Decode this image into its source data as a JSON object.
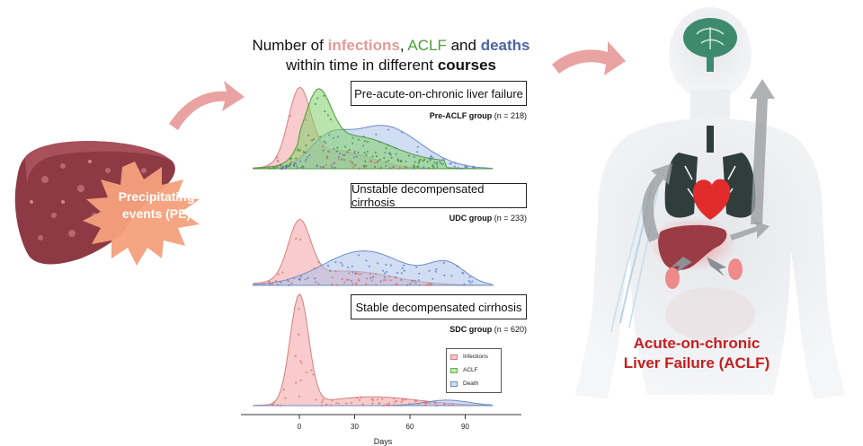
{
  "heading": {
    "line1_prefix": "Number of ",
    "infections": "infections",
    "sep1": ", ",
    "aclf": "ACLF",
    "and": " and ",
    "deaths": "deaths",
    "line2_prefix": "within time in different ",
    "courses": "courses"
  },
  "trigger": {
    "line1": "Precipitating",
    "line2": "events (PE)"
  },
  "outcome": {
    "line1": "Acute-on-chronic",
    "line2": "Liver Failure (ACLF)"
  },
  "panels": [
    {
      "title": "Pre-acute-on-chronic liver failure",
      "group": "Pre-ACLF group",
      "n": "(n = 218)"
    },
    {
      "title": "Unstable decompensated cirrhosis",
      "group": "UDC group",
      "n": "(n = 233)"
    },
    {
      "title": "Stable decompensated cirrhosis",
      "group": "SDC group",
      "n": "(n = 620)"
    }
  ],
  "legend": [
    "Infections",
    "ACLF",
    "Death"
  ],
  "axis": {
    "xlabel": "Days",
    "ticks": [
      "0",
      "30",
      "60",
      "90"
    ]
  },
  "colors": {
    "infections": "#f2a3a3",
    "aclf": "#7fcf6a",
    "death": "#a9c1ea",
    "liver": "#8e3a45",
    "starburst": "#f6a07c",
    "arrow": "#e9a3a3",
    "outcome_text": "#c81d1d"
  }
}
